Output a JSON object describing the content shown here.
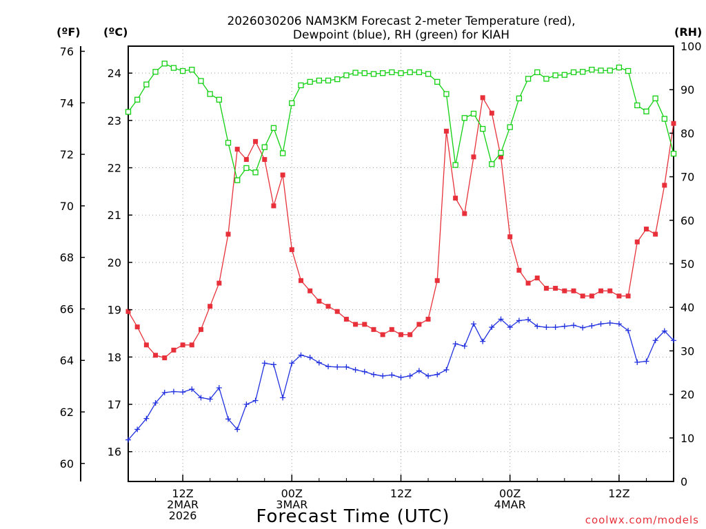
{
  "chart_data": {
    "type": "line",
    "title_line1": "2026030206 NAM3KM Forecast 2-meter Temperature (red),",
    "title_line2": "Dewpoint (blue), RH (green) for KIAH",
    "xlabel": "Forecast Time (UTC)",
    "credit": "coolwx.com/models",
    "units": {
      "fahrenheit": "(ºF)",
      "celsius": "(ºC)",
      "rh": "(RH)"
    },
    "grid": true,
    "colors": {
      "temperature": "#e8303a",
      "dewpoint": "#2030e0",
      "rh": "#10d010"
    },
    "x_range_hours": [
      6,
      66
    ],
    "fahrenheit_axis": {
      "range": [
        59.3,
        76.2
      ],
      "ticks": [
        60,
        62,
        64,
        66,
        68,
        70,
        72,
        74,
        76
      ],
      "tick_labels": [
        "60",
        "62",
        "64",
        "66",
        "68",
        "70",
        "72",
        "74",
        "76"
      ]
    },
    "celsius_axis": {
      "range": [
        15.37,
        24.57
      ],
      "ticks": [
        16,
        17,
        18,
        19,
        20,
        21,
        22,
        23,
        24
      ],
      "tick_labels": [
        "16",
        "17",
        "18",
        "19",
        "20",
        "21",
        "22",
        "23",
        "24"
      ]
    },
    "rh_axis": {
      "range": [
        0,
        100
      ],
      "ticks": [
        0,
        10,
        20,
        30,
        40,
        50,
        60,
        70,
        80,
        90,
        100
      ],
      "tick_labels": [
        "0",
        "10",
        "20",
        "30",
        "40",
        "50",
        "60",
        "70",
        "80",
        "90",
        "100"
      ]
    },
    "x_ticks": [
      {
        "hour": 12,
        "lines": [
          "12Z",
          "2MAR",
          "2026"
        ]
      },
      {
        "hour": 24,
        "lines": [
          "00Z",
          "3MAR"
        ]
      },
      {
        "hour": 36,
        "lines": [
          "12Z"
        ]
      },
      {
        "hour": 48,
        "lines": [
          "00Z",
          "4MAR"
        ]
      },
      {
        "hour": 60,
        "lines": [
          "12Z"
        ]
      }
    ],
    "series": [
      {
        "key": "temperature",
        "axis": "fahrenheit",
        "marker": "filled-square",
        "x": [
          6,
          7,
          8,
          9,
          10,
          11,
          12,
          13,
          14,
          15,
          16,
          17,
          18,
          19,
          20,
          21,
          22,
          23,
          24,
          25,
          26,
          27,
          28,
          29,
          30,
          31,
          32,
          33,
          34,
          35,
          36,
          37,
          38,
          39,
          40,
          41,
          42,
          43,
          44,
          45,
          46,
          47,
          48,
          49,
          50,
          51,
          52,
          53,
          54,
          55,
          56,
          57,
          58,
          59,
          60,
          61,
          62,
          63,
          64,
          65,
          66
        ],
        "values": [
          65.9,
          65.3,
          64.6,
          64.2,
          64.1,
          64.4,
          64.6,
          64.6,
          65.2,
          66.1,
          67.0,
          68.9,
          72.2,
          71.8,
          72.5,
          71.8,
          70.0,
          71.2,
          68.3,
          67.1,
          66.7,
          66.3,
          66.1,
          65.9,
          65.6,
          65.4,
          65.4,
          65.2,
          65.0,
          65.2,
          65.0,
          65.0,
          65.4,
          65.6,
          67.1,
          72.9,
          70.3,
          69.7,
          71.9,
          74.2,
          73.6,
          71.9,
          68.8,
          67.5,
          67.0,
          67.2,
          66.8,
          66.8,
          66.7,
          66.7,
          66.5,
          66.5,
          66.7,
          66.7,
          66.5,
          66.5,
          68.6,
          69.1,
          68.9,
          70.8,
          73.2
        ]
      },
      {
        "key": "dewpoint",
        "axis": "celsius",
        "marker": "plus",
        "x": [
          6,
          7,
          8,
          9,
          10,
          11,
          12,
          13,
          14,
          15,
          16,
          17,
          18,
          19,
          20,
          21,
          22,
          23,
          24,
          25,
          26,
          27,
          28,
          29,
          30,
          31,
          32,
          33,
          34,
          35,
          36,
          37,
          38,
          39,
          40,
          41,
          42,
          43,
          44,
          45,
          46,
          47,
          48,
          49,
          50,
          51,
          52,
          53,
          54,
          55,
          56,
          57,
          58,
          59,
          60,
          61,
          62,
          63,
          64,
          65,
          66
        ],
        "values": [
          16.25,
          16.47,
          16.7,
          17.03,
          17.25,
          17.27,
          17.26,
          17.32,
          17.14,
          17.11,
          17.35,
          16.69,
          16.47,
          17.0,
          17.08,
          17.87,
          17.84,
          17.14,
          17.87,
          18.04,
          17.99,
          17.88,
          17.8,
          17.79,
          17.79,
          17.73,
          17.69,
          17.63,
          17.6,
          17.62,
          17.57,
          17.6,
          17.71,
          17.6,
          17.63,
          17.73,
          18.28,
          18.23,
          18.7,
          18.33,
          18.63,
          18.8,
          18.63,
          18.77,
          18.79,
          18.65,
          18.63,
          18.63,
          18.65,
          18.67,
          18.62,
          18.66,
          18.7,
          18.72,
          18.7,
          18.56,
          17.89,
          17.91,
          18.35,
          18.55,
          18.35
        ]
      },
      {
        "key": "rh",
        "axis": "rh",
        "marker": "open-square",
        "x": [
          6,
          7,
          8,
          9,
          10,
          11,
          12,
          13,
          14,
          15,
          16,
          17,
          18,
          19,
          20,
          21,
          22,
          23,
          24,
          25,
          26,
          27,
          28,
          29,
          30,
          31,
          32,
          33,
          34,
          35,
          36,
          37,
          38,
          39,
          40,
          41,
          42,
          43,
          44,
          45,
          46,
          47,
          48,
          49,
          50,
          51,
          52,
          53,
          54,
          55,
          56,
          57,
          58,
          59,
          60,
          61,
          62,
          63,
          64,
          65,
          66
        ],
        "values": [
          84.9,
          87.7,
          91.2,
          94.1,
          96.0,
          95.0,
          94.3,
          94.6,
          92.0,
          89.0,
          87.7,
          77.8,
          69.2,
          72.0,
          71.0,
          76.8,
          81.2,
          75.4,
          86.9,
          91.0,
          91.8,
          92.1,
          92.1,
          92.4,
          93.3,
          93.9,
          93.8,
          93.6,
          93.8,
          94.0,
          93.8,
          94.0,
          94.0,
          93.6,
          91.8,
          89.0,
          72.7,
          83.5,
          84.5,
          81.0,
          72.9,
          75.5,
          81.4,
          88.0,
          92.5,
          94.0,
          92.5,
          93.3,
          93.4,
          94.0,
          94.1,
          94.6,
          94.4,
          94.4,
          95.1,
          94.3,
          86.4,
          85.0,
          88.0,
          83.3,
          75.3
        ]
      }
    ]
  }
}
